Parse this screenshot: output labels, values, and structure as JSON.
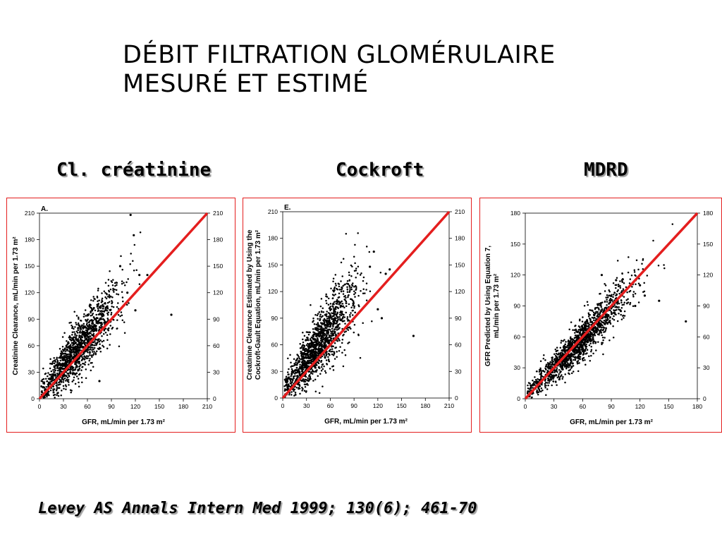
{
  "title": {
    "line1": "DÉBIT FILTRATION GLOMÉRULAIRE",
    "line2": "MESURÉ ET ESTIMÉ"
  },
  "column_labels": [
    "Cl. créatinine",
    "Cockroft",
    "MDRD"
  ],
  "citation": "Levey AS Annals Intern Med 1999; 130(6); 461-70",
  "colors": {
    "identity_line": "#e41e1e",
    "panel_border": "#e41e1e",
    "points": "#000000"
  },
  "chart_data": [
    {
      "type": "scatter",
      "panel_label": "A.",
      "xlabel": "GFR, mL/min per 1.73 m²",
      "ylabel": [
        "Creatinine Clearance, mL/min per 1.73 m²"
      ],
      "xlim": [
        0,
        210
      ],
      "ylim": [
        0,
        210
      ],
      "ticks": [
        0,
        30,
        60,
        90,
        120,
        150,
        180,
        210
      ],
      "identity_line": [
        [
          0,
          0
        ],
        [
          210,
          210
        ]
      ],
      "scatter_cloud": {
        "x_center": 42,
        "y_center": 50,
        "slope": 1.12,
        "spread": 16,
        "n": 1400
      },
      "outliers": [
        [
          114,
          208
        ],
        [
          118,
          185
        ],
        [
          135,
          140
        ],
        [
          101,
          150
        ],
        [
          165,
          95
        ],
        [
          120,
          100
        ],
        [
          75,
          20
        ],
        [
          110,
          120
        ],
        [
          125,
          140
        ]
      ]
    },
    {
      "type": "scatter",
      "panel_label": "E.",
      "xlabel": "GFR, mL/min per 1.73 m²",
      "ylabel": [
        "Creatinine Clearance Estimated by Using the",
        "Cockroft-Gault Equation, mL/min per 1.73 m²"
      ],
      "xlim": [
        0,
        210
      ],
      "ylim": [
        0,
        210
      ],
      "ticks": [
        0,
        30,
        60,
        90,
        120,
        150,
        180,
        210
      ],
      "identity_line": [
        [
          0,
          0
        ],
        [
          210,
          210
        ]
      ],
      "scatter_cloud": {
        "x_center": 38,
        "y_center": 52,
        "slope": 1.2,
        "spread": 18,
        "n": 1500
      },
      "outliers": [
        [
          115,
          165
        ],
        [
          130,
          140
        ],
        [
          135,
          145
        ],
        [
          165,
          70
        ],
        [
          110,
          148
        ],
        [
          120,
          100
        ],
        [
          125,
          90
        ]
      ]
    },
    {
      "type": "scatter",
      "panel_label": "",
      "xlabel": "GFR, mL/min per 1.73 m²",
      "ylabel": [
        "GFR Predicted by Using Equation 7,",
        "mL/min per 1.73 m²"
      ],
      "xlim": [
        0,
        180
      ],
      "ylim": [
        0,
        180
      ],
      "ticks": [
        0,
        30,
        60,
        90,
        120,
        150,
        180
      ],
      "identity_line": [
        [
          0,
          0
        ],
        [
          180,
          180
        ]
      ],
      "scatter_cloud": {
        "x_center": 48,
        "y_center": 47,
        "slope": 0.95,
        "spread": 9,
        "n": 1500
      },
      "outliers": [
        [
          80,
          120
        ],
        [
          95,
          115
        ],
        [
          120,
          110
        ],
        [
          125,
          100
        ],
        [
          140,
          95
        ],
        [
          168,
          75
        ],
        [
          115,
          90
        ],
        [
          100,
          85
        ]
      ]
    }
  ]
}
